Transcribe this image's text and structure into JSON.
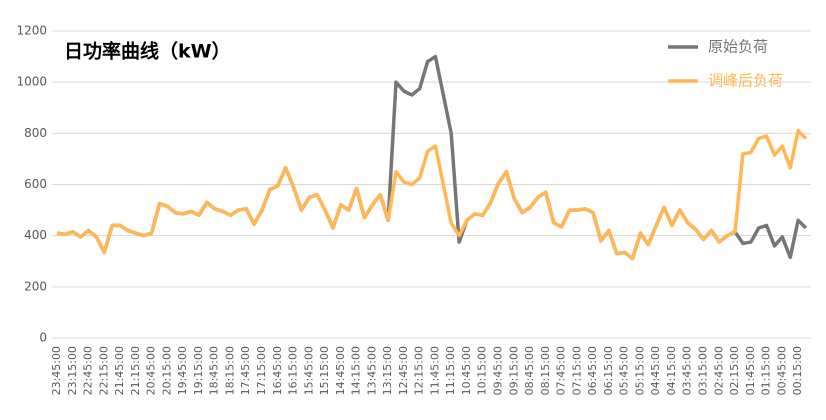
{
  "chart_data": {
    "type": "line",
    "title": "日功率曲线（kW）",
    "categories": [
      "23:45:00",
      null,
      "23:15:00",
      null,
      "22:45:00",
      null,
      "22:15:00",
      null,
      "21:45:00",
      null,
      "21:15:00",
      null,
      "20:45:00",
      null,
      "20:15:00",
      null,
      "19:45:00",
      null,
      "19:15:00",
      null,
      "18:45:00",
      null,
      "18:15:00",
      null,
      "17:45:00",
      null,
      "17:15:00",
      null,
      "16:45:00",
      null,
      "16:15:00",
      null,
      "15:45:00",
      null,
      "15:15:00",
      null,
      "14:45:00",
      null,
      "14:15:00",
      null,
      "13:45:00",
      null,
      "13:15:00",
      null,
      "12:45:00",
      null,
      "12:15:00",
      null,
      "11:45:00",
      null,
      "11:15:00",
      null,
      "10:45:00",
      null,
      "10:15:00",
      null,
      "09:45:00",
      null,
      "09:15:00",
      null,
      "08:45:00",
      null,
      "08:15:00",
      null,
      "07:45:00",
      null,
      "07:15:00",
      null,
      "06:45:00",
      null,
      "06:15:00",
      null,
      "05:45:00",
      null,
      "05:15:00",
      null,
      "04:45:00",
      null,
      "04:15:00",
      null,
      "03:45:00",
      null,
      "03:15:00",
      null,
      "02:45:00",
      null,
      "02:15:00",
      null,
      "01:45:00",
      null,
      "01:15:00",
      null,
      "00:45:00",
      null,
      "00:15:00",
      null
    ],
    "series": [
      {
        "name": "原始负荷",
        "color": "#767676",
        "values": [
          410,
          405,
          415,
          395,
          420,
          395,
          335,
          440,
          440,
          420,
          410,
          400,
          410,
          525,
          515,
          490,
          485,
          495,
          480,
          530,
          505,
          495,
          480,
          500,
          505,
          445,
          500,
          580,
          595,
          665,
          590,
          500,
          550,
          560,
          500,
          430,
          520,
          500,
          585,
          470,
          520,
          560,
          460,
          1000,
          965,
          950,
          975,
          1080,
          1100,
          950,
          800,
          375,
          460,
          485,
          480,
          530,
          605,
          650,
          545,
          490,
          510,
          550,
          570,
          450,
          435,
          500,
          500,
          505,
          490,
          380,
          420,
          330,
          335,
          310,
          410,
          365,
          440,
          510,
          440,
          500,
          450,
          425,
          385,
          420,
          375,
          400,
          415,
          370,
          375,
          430,
          440,
          360,
          395,
          315,
          460,
          430
        ]
      },
      {
        "name": "调峰后负荷",
        "color": "#ffb854",
        "values": [
          410,
          405,
          415,
          395,
          420,
          395,
          335,
          440,
          440,
          420,
          410,
          400,
          410,
          525,
          515,
          490,
          485,
          495,
          480,
          530,
          505,
          495,
          480,
          500,
          505,
          445,
          500,
          580,
          595,
          665,
          590,
          500,
          550,
          560,
          500,
          430,
          520,
          500,
          585,
          470,
          520,
          560,
          460,
          650,
          610,
          600,
          625,
          730,
          750,
          600,
          450,
          400,
          460,
          485,
          480,
          530,
          605,
          650,
          545,
          490,
          510,
          550,
          570,
          450,
          435,
          500,
          500,
          505,
          490,
          380,
          420,
          330,
          335,
          310,
          410,
          365,
          440,
          510,
          440,
          500,
          450,
          425,
          385,
          420,
          375,
          400,
          415,
          720,
          725,
          780,
          790,
          715,
          750,
          665,
          810,
          780
        ]
      }
    ],
    "ylim": [
      0,
      1200
    ],
    "yticks": [
      0,
      200,
      400,
      600,
      800,
      1000,
      1200
    ],
    "grid": true,
    "legend": "upper right"
  }
}
